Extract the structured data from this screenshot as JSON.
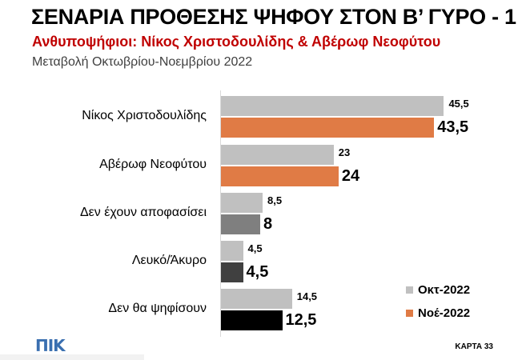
{
  "header": {
    "title": "ΣΕΝΑΡΙΑ ΠΡΟΘΕΣΗΣ ΨΗΦΟΥ ΣΤΟΝ Β’ ΓΥΡΟ - 1",
    "subtitle": "Ανθυποψήφιοι: Νίκος Χριστοδουλίδης & Αβέρωφ Νεοφύτου",
    "subtitle2": "Μεταβολή Οκτωβρίου-Νοεμβρίου 2022"
  },
  "chart_data": {
    "type": "bar",
    "orientation": "horizontal",
    "categories": [
      "Νίκος Χριστοδουλίδης",
      "Αβέρωφ Νεοφύτου",
      "Δεν έχουν αποφασίσει",
      "Λευκό/Άκυρο",
      "Δεν θα ψηφίσουν"
    ],
    "series": [
      {
        "name": "Οκτ-2022",
        "values": [
          45.5,
          23,
          8.5,
          4.5,
          14.5
        ],
        "labels": [
          "45,5",
          "23",
          "8,5",
          "4,5",
          "14,5"
        ],
        "color": "#c0c0c0"
      },
      {
        "name": "Νοέ-2022",
        "values": [
          43.5,
          24,
          8,
          4.5,
          12.5
        ],
        "labels": [
          "43,5",
          "24",
          "8",
          "4,5",
          "12,5"
        ],
        "colors": [
          "#e07b45",
          "#e07b45",
          "#7f7f7f",
          "#404040",
          "#000000"
        ]
      }
    ],
    "legend": {
      "position": "bottom-right",
      "items": [
        {
          "label": "Οκτ-2022",
          "color": "#c0c0c0"
        },
        {
          "label": "Νοέ-2022",
          "color": "#e07b45"
        }
      ]
    },
    "xlim": [
      0,
      50
    ],
    "grid": false
  },
  "footer": {
    "logo_text": "ΠΙΚ",
    "map_label": "ΚΑΡΤΑ 33"
  }
}
